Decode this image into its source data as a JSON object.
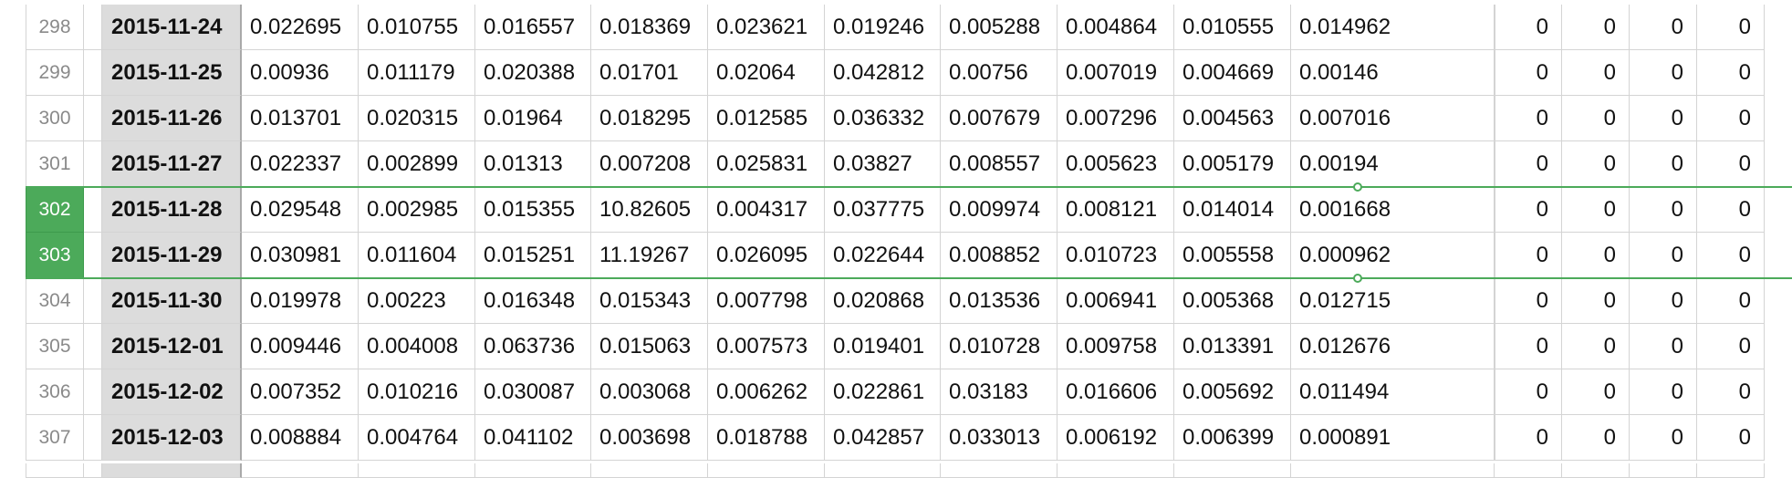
{
  "sheet": {
    "accent_color": "#4caa5a",
    "selected_rows": [
      "302",
      "303"
    ],
    "rows": [
      {
        "num": "298",
        "date": "2015-11-24",
        "values": [
          "0.022695",
          "0.010755",
          "0.016557",
          "0.018369",
          "0.023621",
          "0.019246",
          "0.005288",
          "0.004864",
          "0.010555",
          "0.014962"
        ],
        "zeros": [
          "0",
          "0",
          "0",
          "0"
        ]
      },
      {
        "num": "299",
        "date": "2015-11-25",
        "values": [
          "0.00936",
          "0.011179",
          "0.020388",
          "0.01701",
          "0.02064",
          "0.042812",
          "0.00756",
          "0.007019",
          "0.004669",
          "0.00146"
        ],
        "zeros": [
          "0",
          "0",
          "0",
          "0"
        ]
      },
      {
        "num": "300",
        "date": "2015-11-26",
        "values": [
          "0.013701",
          "0.020315",
          "0.01964",
          "0.018295",
          "0.012585",
          "0.036332",
          "0.007679",
          "0.007296",
          "0.004563",
          "0.007016"
        ],
        "zeros": [
          "0",
          "0",
          "0",
          "0"
        ]
      },
      {
        "num": "301",
        "date": "2015-11-27",
        "values": [
          "0.022337",
          "0.002899",
          "0.01313",
          "0.007208",
          "0.025831",
          "0.03827",
          "0.008557",
          "0.005623",
          "0.005179",
          "0.00194"
        ],
        "zeros": [
          "0",
          "0",
          "0",
          "0"
        ]
      },
      {
        "num": "302",
        "date": "2015-11-28",
        "values": [
          "0.029548",
          "0.002985",
          "0.015355",
          "10.82605",
          "0.004317",
          "0.037775",
          "0.009974",
          "0.008121",
          "0.014014",
          "0.001668"
        ],
        "zeros": [
          "0",
          "0",
          "0",
          "0"
        ]
      },
      {
        "num": "303",
        "date": "2015-11-29",
        "values": [
          "0.030981",
          "0.011604",
          "0.015251",
          "11.19267",
          "0.026095",
          "0.022644",
          "0.008852",
          "0.010723",
          "0.005558",
          "0.000962"
        ],
        "zeros": [
          "0",
          "0",
          "0",
          "0"
        ]
      },
      {
        "num": "304",
        "date": "2015-11-30",
        "values": [
          "0.019978",
          "0.00223",
          "0.016348",
          "0.015343",
          "0.007798",
          "0.020868",
          "0.013536",
          "0.006941",
          "0.005368",
          "0.012715"
        ],
        "zeros": [
          "0",
          "0",
          "0",
          "0"
        ]
      },
      {
        "num": "305",
        "date": "2015-12-01",
        "values": [
          "0.009446",
          "0.004008",
          "0.063736",
          "0.015063",
          "0.007573",
          "0.019401",
          "0.010728",
          "0.009758",
          "0.013391",
          "0.012676"
        ],
        "zeros": [
          "0",
          "0",
          "0",
          "0"
        ]
      },
      {
        "num": "306",
        "date": "2015-12-02",
        "values": [
          "0.007352",
          "0.010216",
          "0.030087",
          "0.003068",
          "0.006262",
          "0.022861",
          "0.03183",
          "0.016606",
          "0.005692",
          "0.011494"
        ],
        "zeros": [
          "0",
          "0",
          "0",
          "0"
        ]
      },
      {
        "num": "307",
        "date": "2015-12-03",
        "values": [
          "0.008884",
          "0.004764",
          "0.041102",
          "0.003698",
          "0.018788",
          "0.042857",
          "0.033013",
          "0.006192",
          "0.006399",
          "0.000891"
        ],
        "zeros": [
          "0",
          "0",
          "0",
          "0"
        ]
      }
    ]
  }
}
